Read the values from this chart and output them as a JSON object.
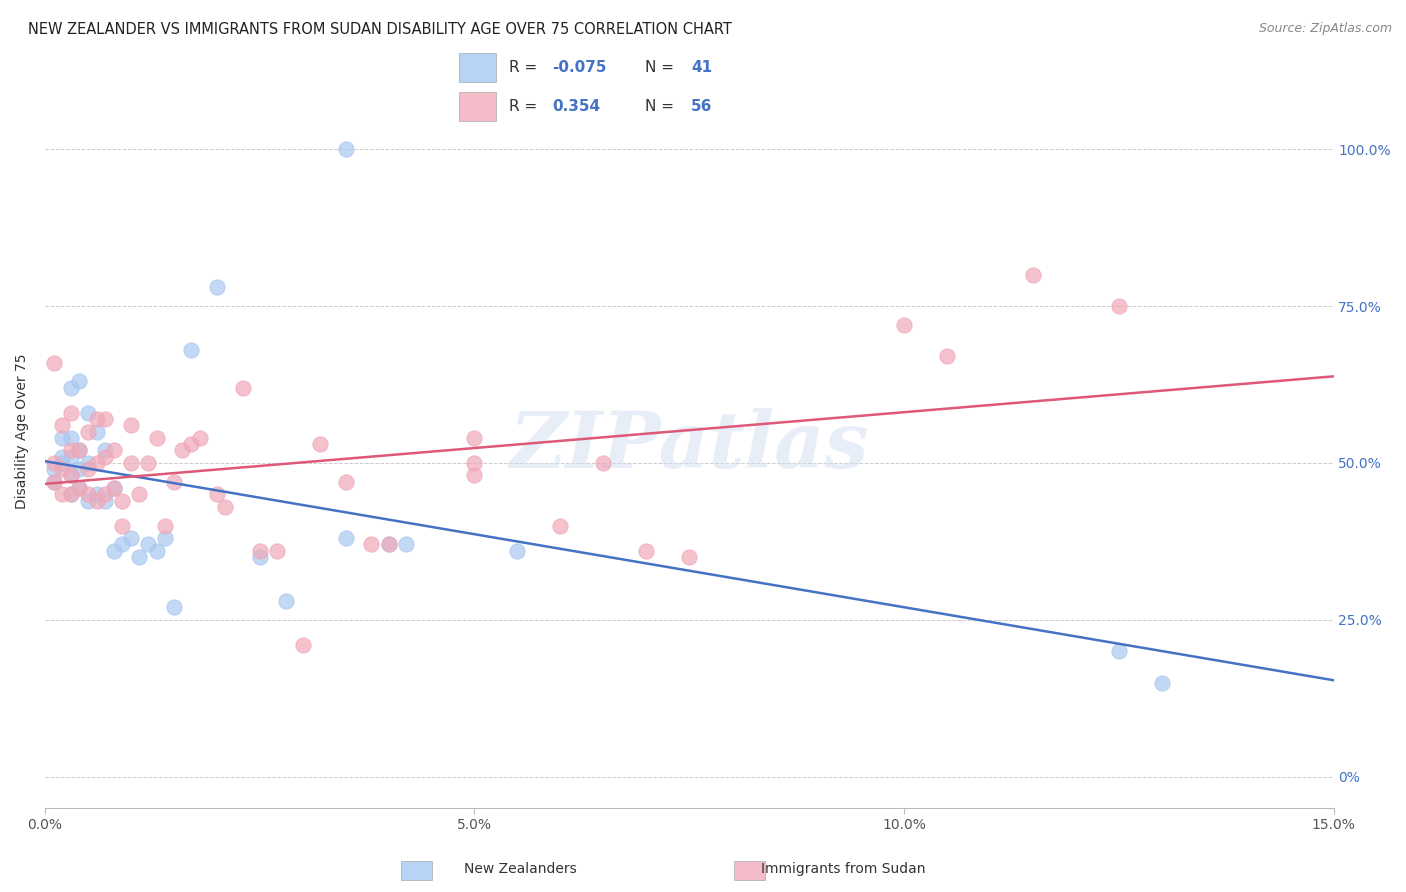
{
  "title": "NEW ZEALANDER VS IMMIGRANTS FROM SUDAN DISABILITY AGE OVER 75 CORRELATION CHART",
  "source": "Source: ZipAtlas.com",
  "ylabel": "Disability Age Over 75",
  "xmin": 0.0,
  "xmax": 0.15,
  "ymin": -5.0,
  "ymax": 115.0,
  "ytick_values": [
    0.0,
    25.0,
    50.0,
    75.0,
    100.0
  ],
  "ytick_labels_right": [
    "0%",
    "25.0%",
    "50.0%",
    "75.0%",
    "100.0%"
  ],
  "color_nz": "#a8c8f0",
  "color_sudan": "#f0a8b8",
  "color_nz_line": "#4472c4",
  "color_sudan_line": "#e05878",
  "color_nz_legend_fill": "#b8d4f4",
  "color_sudan_legend_fill": "#f4bcc8",
  "watermark": "ZIPatlas",
  "legend_labels": [
    "New Zealanders",
    "Immigrants from Sudan"
  ],
  "nz_r": "-0.075",
  "nz_n": "41",
  "sudan_r": "0.354",
  "sudan_n": "56",
  "nz_x": [
    0.001,
    0.001,
    0.002,
    0.002,
    0.002,
    0.003,
    0.003,
    0.003,
    0.003,
    0.003,
    0.004,
    0.004,
    0.004,
    0.004,
    0.005,
    0.005,
    0.005,
    0.006,
    0.006,
    0.007,
    0.007,
    0.008,
    0.008,
    0.009,
    0.01,
    0.011,
    0.012,
    0.013,
    0.014,
    0.015,
    0.017,
    0.02,
    0.025,
    0.028,
    0.035,
    0.04,
    0.042,
    0.055,
    0.125,
    0.13,
    0.035
  ],
  "nz_y": [
    47.0,
    49.0,
    50.0,
    51.0,
    54.0,
    45.0,
    48.0,
    51.0,
    54.0,
    62.0,
    46.0,
    49.0,
    52.0,
    63.0,
    44.0,
    50.0,
    58.0,
    45.0,
    55.0,
    44.0,
    52.0,
    36.0,
    46.0,
    37.0,
    38.0,
    35.0,
    37.0,
    36.0,
    38.0,
    27.0,
    68.0,
    78.0,
    35.0,
    28.0,
    38.0,
    37.0,
    37.0,
    36.0,
    20.0,
    15.0,
    100.0
  ],
  "sudan_x": [
    0.001,
    0.001,
    0.001,
    0.002,
    0.002,
    0.002,
    0.003,
    0.003,
    0.003,
    0.003,
    0.004,
    0.004,
    0.005,
    0.005,
    0.005,
    0.006,
    0.006,
    0.006,
    0.007,
    0.007,
    0.007,
    0.008,
    0.008,
    0.009,
    0.009,
    0.01,
    0.01,
    0.011,
    0.012,
    0.013,
    0.014,
    0.015,
    0.016,
    0.017,
    0.018,
    0.02,
    0.021,
    0.023,
    0.025,
    0.027,
    0.03,
    0.032,
    0.035,
    0.038,
    0.04,
    0.05,
    0.05,
    0.05,
    0.06,
    0.065,
    0.07,
    0.075,
    0.1,
    0.105,
    0.115,
    0.125
  ],
  "sudan_y": [
    47.0,
    50.0,
    66.0,
    45.0,
    49.0,
    56.0,
    45.0,
    48.0,
    52.0,
    58.0,
    46.0,
    52.0,
    45.0,
    49.0,
    55.0,
    44.0,
    50.0,
    57.0,
    45.0,
    51.0,
    57.0,
    46.0,
    52.0,
    40.0,
    44.0,
    50.0,
    56.0,
    45.0,
    50.0,
    54.0,
    40.0,
    47.0,
    52.0,
    53.0,
    54.0,
    45.0,
    43.0,
    62.0,
    36.0,
    36.0,
    21.0,
    53.0,
    47.0,
    37.0,
    37.0,
    54.0,
    50.0,
    48.0,
    40.0,
    50.0,
    36.0,
    35.0,
    72.0,
    67.0,
    80.0,
    75.0
  ],
  "background_color": "#ffffff",
  "grid_color": "#cccccc"
}
